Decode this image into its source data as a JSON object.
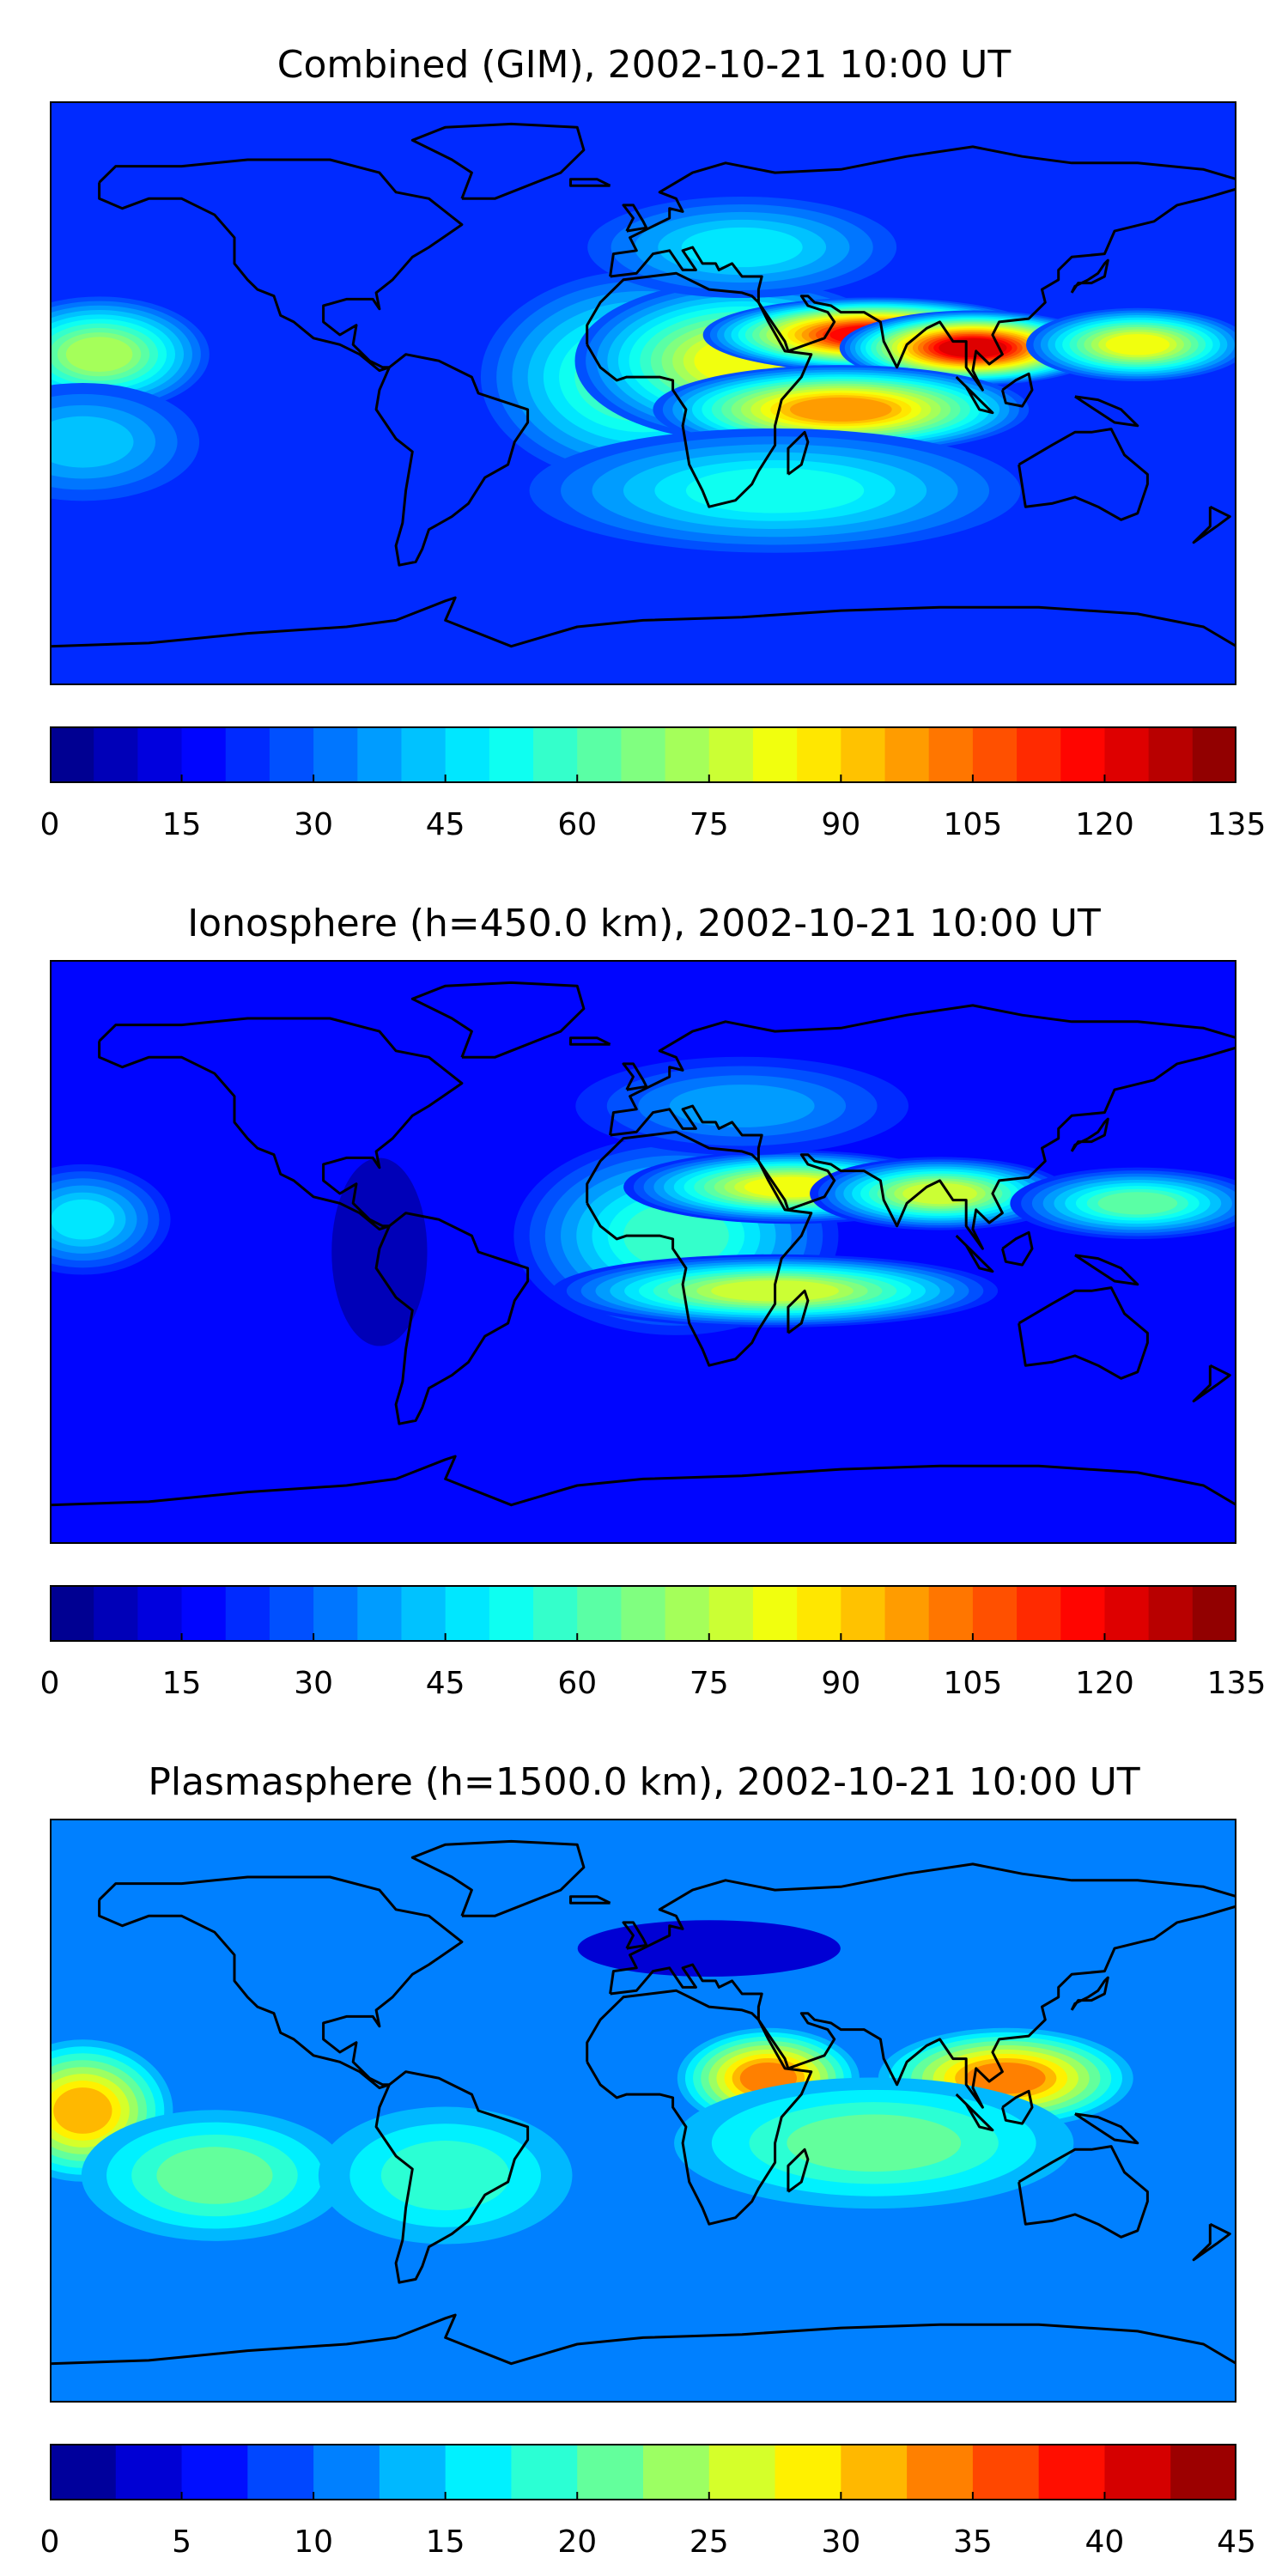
{
  "panels": [
    {
      "title": "Combined (GIM), 2002-10-21 10:00 UT",
      "colorbar": {
        "min": 0,
        "max": 135,
        "levels": 27,
        "ticks": [
          "0",
          "15",
          "30",
          "45",
          "60",
          "75",
          "90",
          "105",
          "120",
          "135"
        ]
      },
      "field": {
        "background": 22,
        "blobs": [
          {
            "lon": -165,
            "lat": 12,
            "value": 72,
            "rlon": 30,
            "rlat": 16
          },
          {
            "lon": -170,
            "lat": -15,
            "value": 45,
            "rlon": 35,
            "rlat": 18
          },
          {
            "lon": 0,
            "lat": 5,
            "value": 62,
            "rlon": 45,
            "rlat": 30
          },
          {
            "lon": 30,
            "lat": 10,
            "value": 85,
            "rlon": 45,
            "rlat": 22
          },
          {
            "lon": 70,
            "lat": 18,
            "value": 118,
            "rlon": 45,
            "rlat": 10
          },
          {
            "lon": 100,
            "lat": 14,
            "value": 122,
            "rlon": 35,
            "rlat": 10
          },
          {
            "lon": 60,
            "lat": -5,
            "value": 100,
            "rlon": 50,
            "rlat": 12
          },
          {
            "lon": 150,
            "lat": 15,
            "value": 85,
            "rlon": 30,
            "rlat": 10
          },
          {
            "lon": 40,
            "lat": -30,
            "value": 55,
            "rlon": 70,
            "rlat": 18
          },
          {
            "lon": 30,
            "lat": 45,
            "value": 50,
            "rlon": 45,
            "rlat": 15
          }
        ]
      }
    },
    {
      "title": "Ionosphere  (h=450.0 km), 2002-10-21 10:00 UT",
      "colorbar": {
        "min": 0,
        "max": 135,
        "levels": 27,
        "ticks": [
          "0",
          "15",
          "30",
          "45",
          "60",
          "75",
          "90",
          "105",
          "120",
          "135"
        ]
      },
      "field": {
        "background": 18,
        "blobs": [
          {
            "lon": -170,
            "lat": 10,
            "value": 50,
            "rlon": 25,
            "rlat": 16
          },
          {
            "lon": 10,
            "lat": 5,
            "value": 62,
            "rlon": 45,
            "rlat": 28
          },
          {
            "lon": 45,
            "lat": 20,
            "value": 85,
            "rlon": 45,
            "rlat": 10
          },
          {
            "lon": 90,
            "lat": 18,
            "value": 78,
            "rlon": 35,
            "rlat": 10
          },
          {
            "lon": 40,
            "lat": -12,
            "value": 80,
            "rlon": 60,
            "rlat": 10
          },
          {
            "lon": 150,
            "lat": 15,
            "value": 65,
            "rlon": 35,
            "rlat": 10
          },
          {
            "lon": 30,
            "lat": 45,
            "value": 42,
            "rlon": 50,
            "rlat": 15
          },
          {
            "lon": -80,
            "lat": 0,
            "value": 8,
            "rlon": 20,
            "rlat": 40
          }
        ]
      }
    },
    {
      "title": "Plasmasphere (h=1500.0 km), 2002-10-21 10:00 UT",
      "colorbar": {
        "min": 0,
        "max": 45,
        "levels": 18,
        "ticks": [
          "0",
          "5",
          "10",
          "15",
          "20",
          "25",
          "30",
          "35",
          "40",
          "45"
        ]
      },
      "field": {
        "background": 10,
        "blobs": [
          {
            "lon": -170,
            "lat": 0,
            "value": 30,
            "rlon": 25,
            "rlat": 20
          },
          {
            "lon": -130,
            "lat": -20,
            "value": 20,
            "rlon": 40,
            "rlat": 20
          },
          {
            "lon": 38,
            "lat": 10,
            "value": 33,
            "rlon": 25,
            "rlat": 14
          },
          {
            "lon": 110,
            "lat": 10,
            "value": 34,
            "rlon": 35,
            "rlat": 14
          },
          {
            "lon": 70,
            "lat": -10,
            "value": 22,
            "rlon": 60,
            "rlat": 20
          },
          {
            "lon": -60,
            "lat": -20,
            "value": 18,
            "rlon": 40,
            "rlat": 22
          },
          {
            "lon": 20,
            "lat": 50,
            "value": 3,
            "rlon": 55,
            "rlat": 12
          }
        ]
      }
    }
  ],
  "map_outline_color": "#000000"
}
